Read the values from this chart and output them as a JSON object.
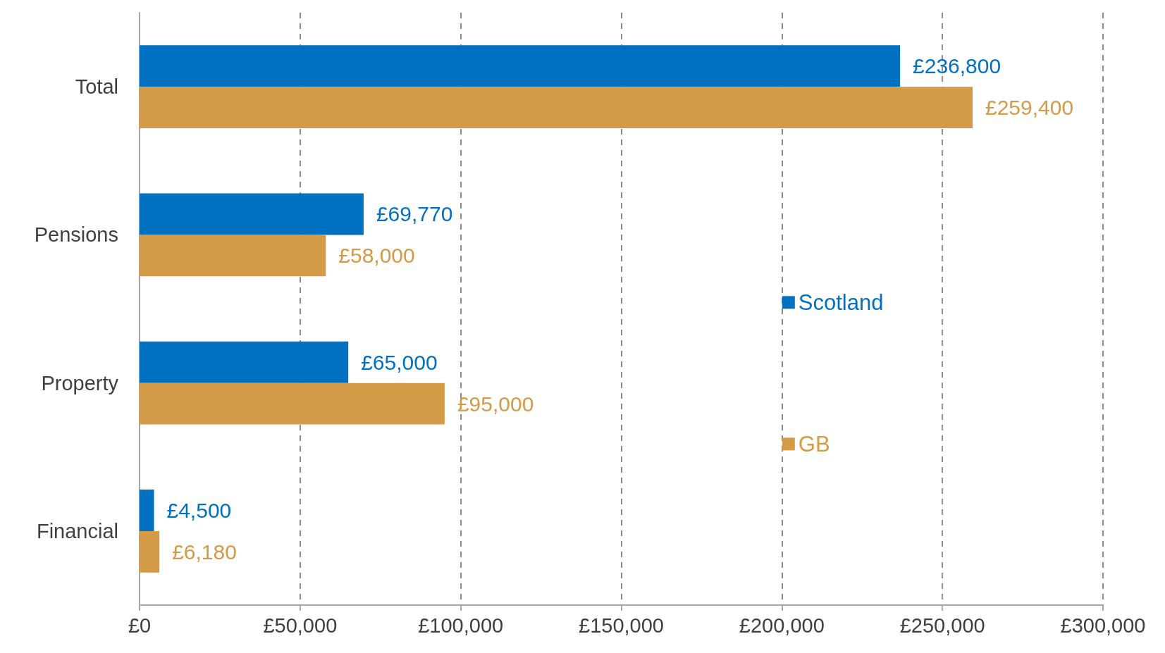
{
  "chart_data": {
    "type": "bar",
    "orientation": "horizontal",
    "categories": [
      "Total",
      "Pensions",
      "Property",
      "Financial"
    ],
    "series": [
      {
        "name": "Scotland",
        "color": "#0070c0",
        "values": [
          236800,
          69770,
          65000,
          4500
        ],
        "value_labels": [
          "£236,800",
          "£69,770",
          "£65,000",
          "£4,500"
        ]
      },
      {
        "name": "GB",
        "color": "#d39b48",
        "values": [
          259400,
          58000,
          95000,
          6180
        ],
        "value_labels": [
          "£259,400",
          "£58,000",
          "£95,000",
          "£6,180"
        ]
      }
    ],
    "xlim": [
      0,
      300000
    ],
    "xticks": [
      {
        "value": 0,
        "label": "£0"
      },
      {
        "value": 50000,
        "label": "£50,000"
      },
      {
        "value": 100000,
        "label": "£100,000"
      },
      {
        "value": 150000,
        "label": "£150,000"
      },
      {
        "value": 200000,
        "label": "£200,000"
      },
      {
        "value": 250000,
        "label": "£250,000"
      },
      {
        "value": 300000,
        "label": "£300,000"
      }
    ],
    "grid": "x",
    "legend": "right"
  }
}
